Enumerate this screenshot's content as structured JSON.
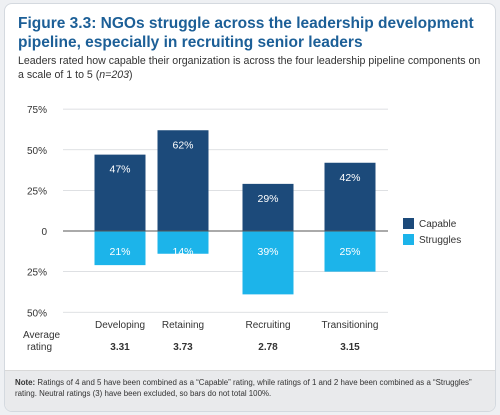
{
  "title": "Figure 3.3: NGOs struggle across the leadership development pipeline, especially in recruiting senior leaders",
  "subtitle": "Leaders rated how capable their organization is across the four leadership pipeline components on a scale of 1 to 5 (",
  "subtitle_n": "n=203",
  "subtitle_end": ")",
  "note_label": "Note:",
  "note_text": " Ratings of 4 and 5 have been combined as a “Capable” rating, while ratings of 1 and 2 have been combined as a “Struggles” rating. Neutral ratings (3) have been excluded, so bars do not total 100%.",
  "colors": {
    "capable": "#1c4a7a",
    "struggles": "#1cb4ea",
    "title": "#1c5f97"
  },
  "chart_data": {
    "type": "bar",
    "categories": [
      "Developing",
      "Retaining",
      "Recruiting",
      "Transitioning"
    ],
    "series": [
      {
        "name": "Capable",
        "values": [
          47,
          62,
          29,
          42
        ],
        "labels": [
          "47%",
          "62%",
          "29%",
          "42%"
        ]
      },
      {
        "name": "Struggles",
        "values": [
          21,
          14,
          39,
          25
        ],
        "labels": [
          "21%",
          "14%",
          "39%",
          "25%"
        ]
      }
    ],
    "y_ticks": [
      75,
      50,
      25,
      0,
      -25,
      -50
    ],
    "y_tick_labels": [
      "75%",
      "50%",
      "25%",
      "0",
      "25%",
      "50%"
    ],
    "ylim": [
      -50,
      75
    ],
    "legend_position": "right",
    "average_rating_label": [
      "Average",
      "rating"
    ],
    "average_ratings": [
      "3.31",
      "3.73",
      "2.78",
      "3.15"
    ]
  }
}
